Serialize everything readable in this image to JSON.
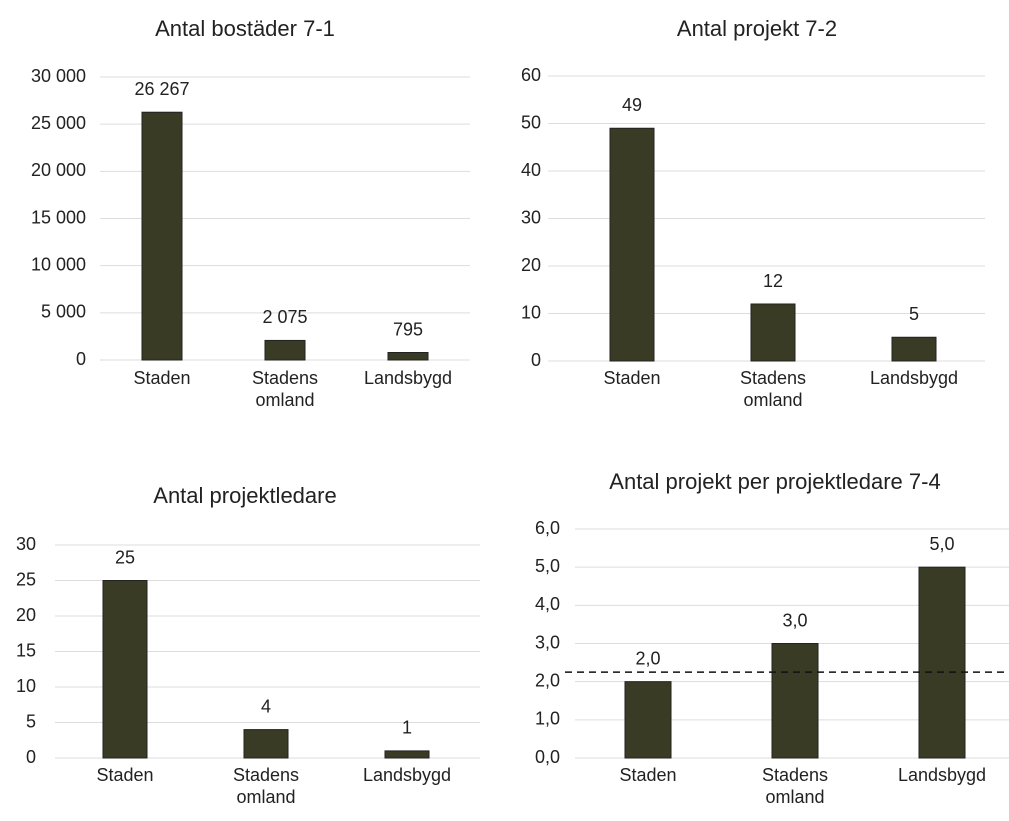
{
  "chart_data": [
    {
      "type": "bar",
      "title": "Antal bostäder 7-1",
      "categories": [
        "Staden",
        "Stadens omland",
        "Landsbygd"
      ],
      "values": [
        26267,
        2075,
        795
      ],
      "value_labels": [
        "26 267",
        "2 075",
        "795"
      ],
      "color": "#393b24",
      "ylim": [
        0,
        30000
      ],
      "yticks": [
        0,
        {
          "value": 5000,
          "label": "5 000"
        },
        {
          "value": 10000,
          "label": "10 000"
        },
        {
          "value": 15000,
          "label": "15 000"
        },
        {
          "value": 20000,
          "label": "20 000"
        },
        {
          "value": 25000,
          "label": "25 000"
        },
        {
          "value": 30000,
          "label": "30 000"
        }
      ],
      "grid": true
    },
    {
      "type": "bar",
      "title": "Antal projekt 7-2",
      "categories": [
        "Staden",
        "Stadens omland",
        "Landsbygd"
      ],
      "values": [
        49,
        12,
        5
      ],
      "color": "#393b24",
      "ylim": [
        0,
        60
      ],
      "yticks": [
        0,
        10,
        20,
        30,
        40,
        50,
        60
      ],
      "grid": true
    },
    {
      "type": "bar",
      "title": "Antal projektledare",
      "categories": [
        "Staden",
        "Stadens omland",
        "Landsbygd"
      ],
      "values": [
        25,
        4,
        1
      ],
      "color": "#393b24",
      "ylim": [
        0,
        30
      ],
      "yticks": [
        0,
        5,
        10,
        15,
        20,
        25,
        30
      ],
      "grid": true
    },
    {
      "type": "bar",
      "title": "Antal projekt per projektledare 7-4",
      "categories": [
        "Staden",
        "Stadens omland",
        "Landsbygd"
      ],
      "values": [
        2,
        3,
        5
      ],
      "value_labels": [
        "2,0",
        "3,0",
        "5,0"
      ],
      "color": "#393b24",
      "ylim": [
        0,
        6
      ],
      "yticks": [
        {
          "value": 0,
          "label": "0,0"
        },
        {
          "value": 1,
          "label": "1,0"
        },
        {
          "value": 2,
          "label": "2,0"
        },
        {
          "value": 3,
          "label": "3,0"
        },
        {
          "value": 4,
          "label": "4,0"
        },
        {
          "value": 5,
          "label": "5,0"
        },
        {
          "value": 6,
          "label": "6,0"
        }
      ],
      "grid": true,
      "reference_line": 2.25
    }
  ]
}
